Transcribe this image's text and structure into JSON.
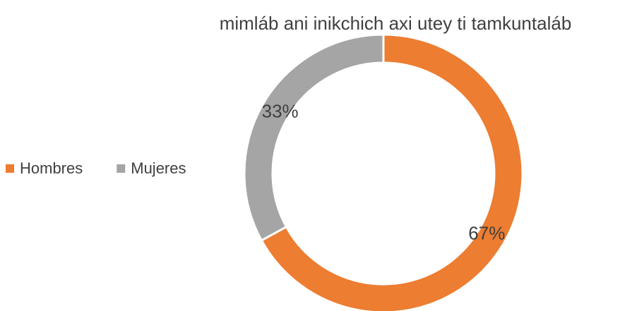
{
  "chart_data": {
    "type": "pie",
    "title": "mimláb ani inikchich axi utey ti tamkuntaláb",
    "categories": [
      "Hombres",
      "Mujeres"
    ],
    "values": [
      67,
      33
    ],
    "value_labels": [
      "67%",
      "33%"
    ],
    "colors": [
      "#ed7d31",
      "#a5a5a5"
    ],
    "donut": true,
    "legend": "left"
  }
}
